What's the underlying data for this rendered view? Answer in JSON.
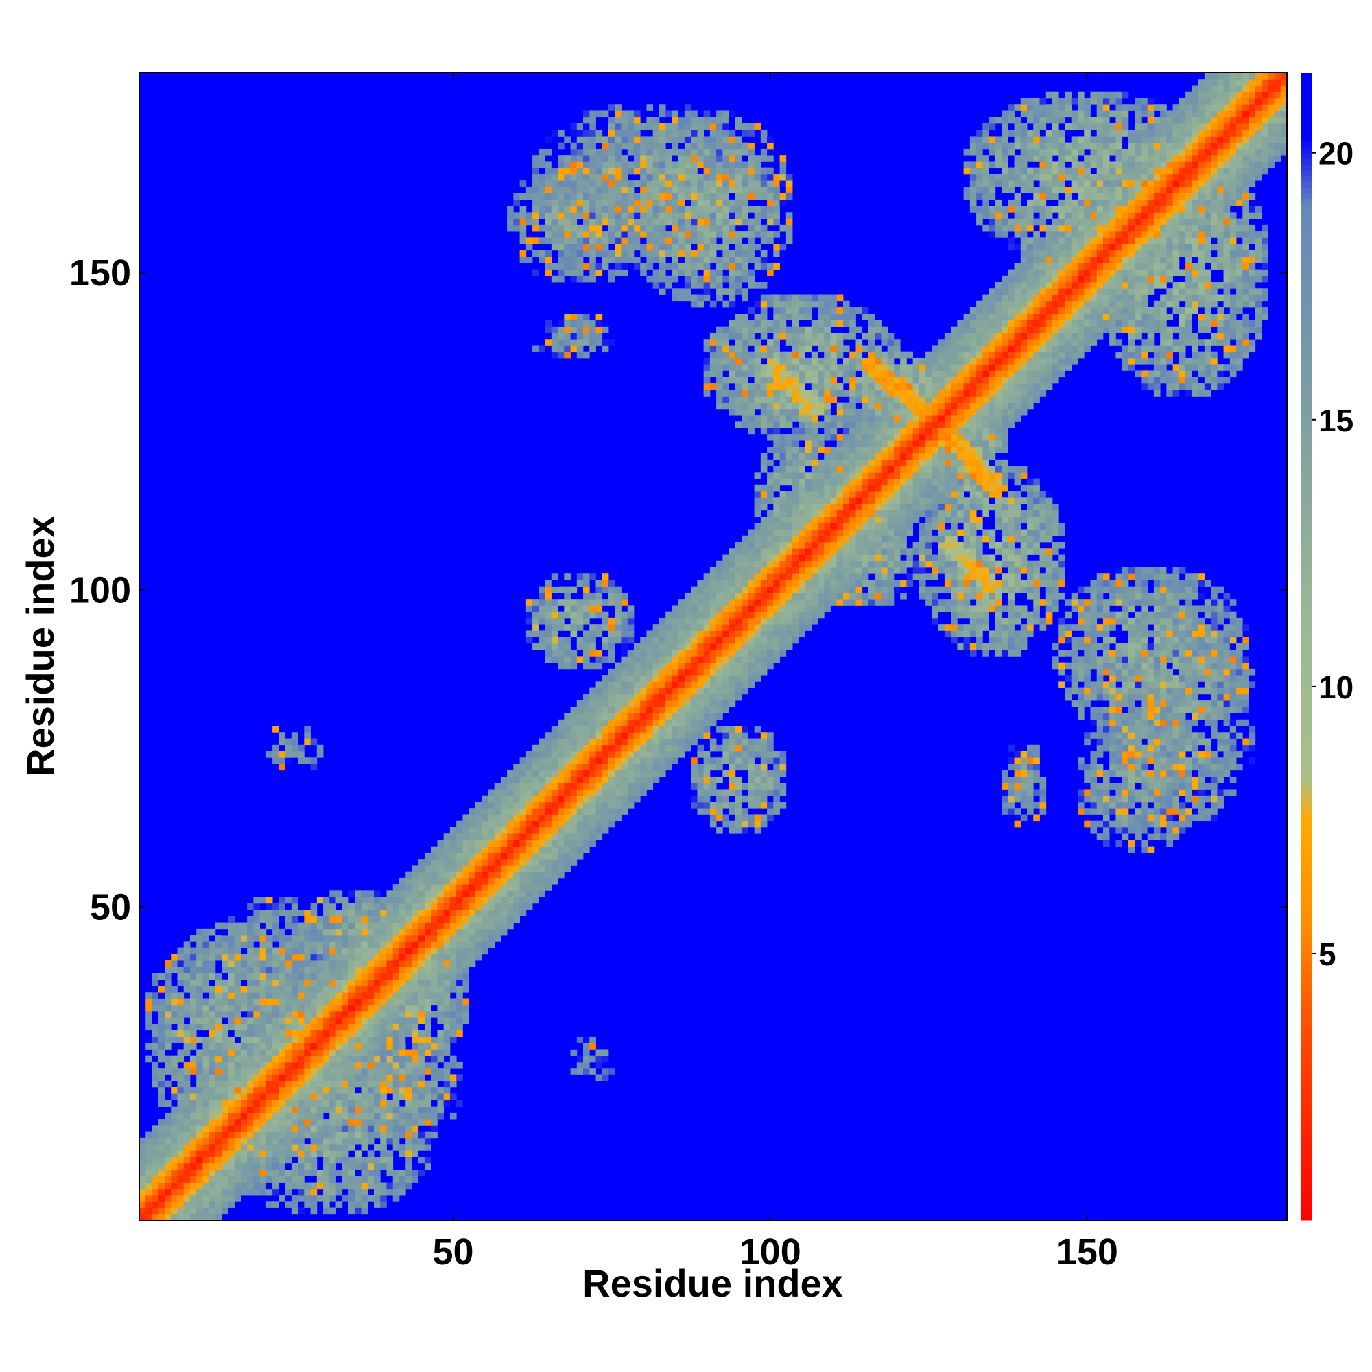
{
  "chart_data": {
    "type": "heatmap",
    "title": "",
    "xlabel": "Residue index",
    "ylabel": "Residue index",
    "n_residues": 181,
    "xlim": [
      1,
      181
    ],
    "ylim": [
      1,
      181
    ],
    "x_ticks": [
      50,
      100,
      150
    ],
    "y_ticks": [
      50,
      100,
      150
    ],
    "colorbar": {
      "range": [
        0,
        21.5
      ],
      "ticks": [
        5,
        10,
        15,
        20
      ],
      "stops": [
        {
          "value": 0,
          "color": "#ff0000"
        },
        {
          "value": 3.5,
          "color": "#ff4a00"
        },
        {
          "value": 5.5,
          "color": "#ff8c00"
        },
        {
          "value": 7.5,
          "color": "#ffaa00"
        },
        {
          "value": 8.3,
          "color": "#a9bf8a"
        },
        {
          "value": 11,
          "color": "#9cb994"
        },
        {
          "value": 15,
          "color": "#7fa0a0"
        },
        {
          "value": 19,
          "color": "#6688b8"
        },
        {
          "value": 20.3,
          "color": "#0000ff"
        },
        {
          "value": 21.5,
          "color": "#0000ff"
        }
      ]
    },
    "cutoff_color": "#0000ff",
    "diagonal_band": {
      "width": 4,
      "value": 2
    },
    "contact_regions": [
      {
        "cx": 15,
        "cy": 30,
        "rx": 14,
        "ry": 18,
        "value": 14
      },
      {
        "cx": 30,
        "cy": 15,
        "rx": 18,
        "ry": 14,
        "value": 14
      },
      {
        "cx": 22,
        "cy": 40,
        "rx": 10,
        "ry": 12,
        "value": 15
      },
      {
        "cx": 40,
        "cy": 22,
        "rx": 12,
        "ry": 10,
        "value": 15
      },
      {
        "cx": 35,
        "cy": 45,
        "rx": 10,
        "ry": 8,
        "value": 14
      },
      {
        "cx": 45,
        "cy": 35,
        "rx": 8,
        "ry": 10,
        "value": 14
      },
      {
        "cx": 25,
        "cy": 75,
        "rx": 5,
        "ry": 4,
        "value": 17
      },
      {
        "cx": 72,
        "cy": 26,
        "rx": 4,
        "ry": 4,
        "value": 17
      },
      {
        "cx": 70,
        "cy": 95,
        "rx": 9,
        "ry": 8,
        "value": 14
      },
      {
        "cx": 95,
        "cy": 70,
        "rx": 8,
        "ry": 9,
        "value": 14
      },
      {
        "cx": 80,
        "cy": 165,
        "rx": 18,
        "ry": 12,
        "value": 15
      },
      {
        "cx": 165,
        "cy": 80,
        "rx": 12,
        "ry": 18,
        "value": 15
      },
      {
        "cx": 70,
        "cy": 140,
        "rx": 6,
        "ry": 4,
        "value": 16
      },
      {
        "cx": 140,
        "cy": 70,
        "rx": 4,
        "ry": 6,
        "value": 16
      },
      {
        "cx": 105,
        "cy": 135,
        "rx": 16,
        "ry": 12,
        "value": 13
      },
      {
        "cx": 135,
        "cy": 105,
        "rx": 12,
        "ry": 16,
        "value": 13
      },
      {
        "cx": 150,
        "cy": 165,
        "rx": 20,
        "ry": 14,
        "value": 13
      },
      {
        "cx": 165,
        "cy": 150,
        "rx": 14,
        "ry": 20,
        "value": 13
      },
      {
        "cx": 160,
        "cy": 90,
        "rx": 16,
        "ry": 14,
        "value": 14
      },
      {
        "cx": 90,
        "cy": 160,
        "rx": 14,
        "ry": 16,
        "value": 14
      },
      {
        "cx": 158,
        "cy": 70,
        "rx": 10,
        "ry": 12,
        "value": 15
      },
      {
        "cx": 70,
        "cy": 158,
        "rx": 12,
        "ry": 10,
        "value": 15
      },
      {
        "cx": 140,
        "cy": 68,
        "rx": 4,
        "ry": 6,
        "value": 17
      },
      {
        "cx": 68,
        "cy": 140,
        "rx": 6,
        "ry": 4,
        "value": 17
      },
      {
        "cx": 120,
        "cy": 132,
        "rx": 8,
        "ry": 6,
        "value": 12
      },
      {
        "cx": 132,
        "cy": 120,
        "rx": 6,
        "ry": 8,
        "value": 12
      },
      {
        "cx": 115,
        "cy": 105,
        "rx": 10,
        "ry": 8,
        "value": 14
      },
      {
        "cx": 105,
        "cy": 115,
        "rx": 8,
        "ry": 10,
        "value": 14
      }
    ],
    "antiparallel_strips": [
      {
        "x0": 115,
        "y0": 136,
        "x1": 125,
        "y1": 128,
        "value": 6
      },
      {
        "x0": 128,
        "y0": 125,
        "x1": 136,
        "y1": 115,
        "value": 6
      },
      {
        "x0": 100,
        "y0": 135,
        "x1": 108,
        "y1": 128,
        "value": 7
      },
      {
        "x0": 128,
        "y0": 108,
        "x1": 135,
        "y1": 100,
        "value": 7
      }
    ]
  }
}
